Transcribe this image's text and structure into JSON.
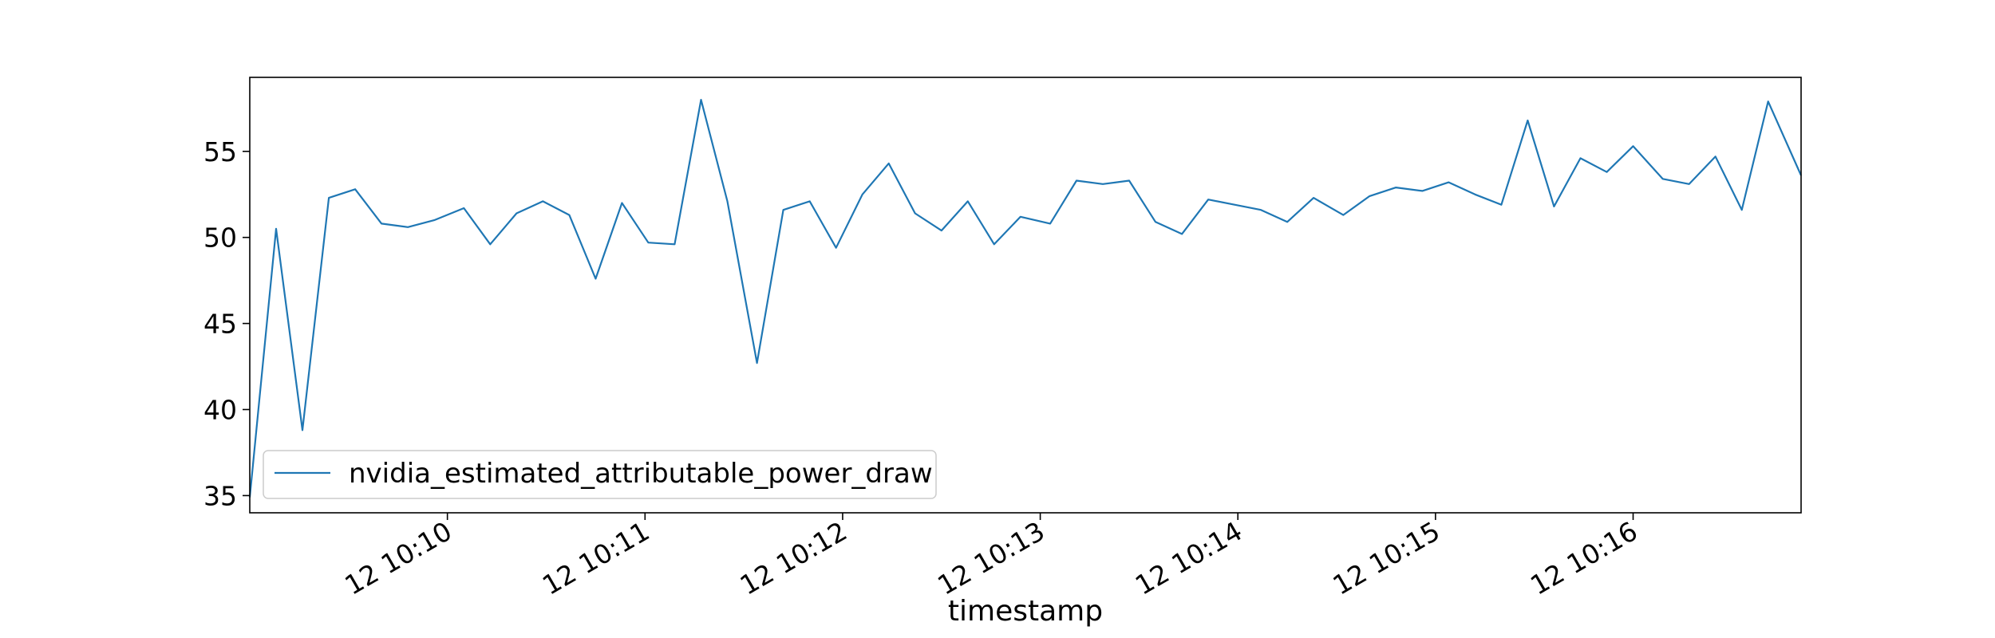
{
  "chart_data": {
    "type": "line",
    "title": "",
    "xlabel": "timestamp",
    "ylabel": "",
    "x_tick_labels": [
      "12 10:10",
      "12 10:11",
      "12 10:12",
      "12 10:13",
      "12 10:14",
      "12 10:15",
      "12 10:16"
    ],
    "x_tick_values": [
      "10:10",
      "10:11",
      "10:12",
      "10:13",
      "10:14",
      "10:15",
      "10:16"
    ],
    "xlim": [
      "10:09:00",
      "10:16:51"
    ],
    "y_ticks": [
      35,
      40,
      45,
      50,
      55
    ],
    "ylim": [
      34.0,
      59.3
    ],
    "grid": false,
    "legend": {
      "placement": "lower-left"
    },
    "series": [
      {
        "name": "nvidia_estimated_attributable_power_draw",
        "color": "#1f77b4",
        "x": [
          "10:09:00",
          "10:09:08",
          "10:09:16",
          "10:09:24",
          "10:09:32",
          "10:09:40",
          "10:09:48",
          "10:09:56",
          "10:10:05",
          "10:10:13",
          "10:10:21",
          "10:10:29",
          "10:10:37",
          "10:10:45",
          "10:10:53",
          "10:11:01",
          "10:11:09",
          "10:11:17",
          "10:11:25",
          "10:11:34",
          "10:11:42",
          "10:11:50",
          "10:11:58",
          "10:12:06",
          "10:12:14",
          "10:12:22",
          "10:12:30",
          "10:12:38",
          "10:12:46",
          "10:12:54",
          "10:13:03",
          "10:13:11",
          "10:13:19",
          "10:13:27",
          "10:13:35",
          "10:13:43",
          "10:13:51",
          "10:13:59",
          "10:14:07",
          "10:14:15",
          "10:14:23",
          "10:14:32",
          "10:14:40",
          "10:14:48",
          "10:14:56",
          "10:15:04",
          "10:15:12",
          "10:15:20",
          "10:15:28",
          "10:15:36",
          "10:15:44",
          "10:15:52",
          "10:16:00",
          "10:16:09",
          "10:16:17",
          "10:16:25",
          "10:16:33",
          "10:16:41",
          "10:16:51"
        ],
        "y": [
          34.9,
          50.5,
          38.8,
          52.3,
          52.8,
          50.8,
          50.6,
          51.0,
          51.7,
          49.6,
          51.4,
          52.1,
          51.3,
          47.6,
          52.0,
          49.7,
          49.6,
          58.0,
          52.1,
          42.7,
          51.6,
          52.1,
          49.4,
          52.5,
          54.3,
          51.4,
          50.4,
          52.1,
          49.6,
          51.2,
          50.8,
          53.3,
          53.1,
          53.3,
          50.9,
          50.2,
          52.2,
          51.9,
          51.6,
          50.9,
          52.3,
          51.3,
          52.4,
          52.9,
          52.7,
          53.2,
          52.5,
          51.9,
          56.8,
          51.8,
          54.6,
          53.8,
          55.3,
          53.4,
          53.1,
          54.7,
          51.6,
          57.9,
          53.6
        ]
      }
    ]
  }
}
